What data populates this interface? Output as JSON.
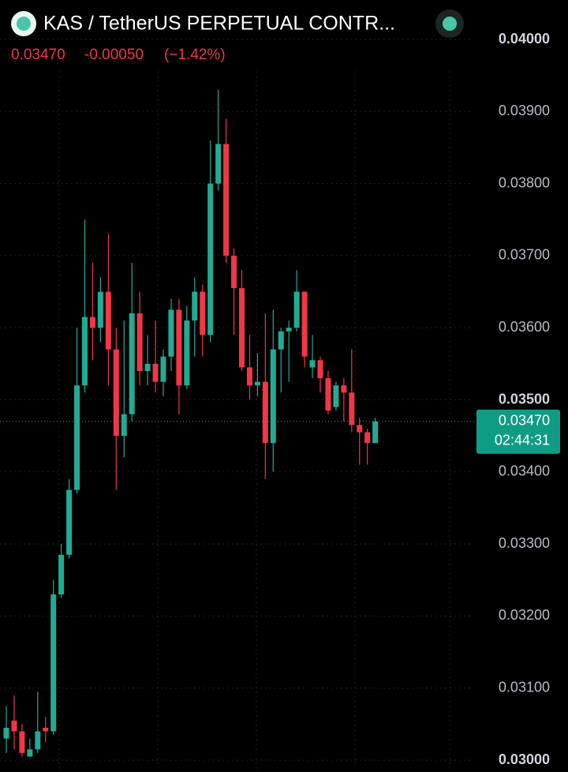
{
  "chart_data": {
    "type": "candlestick",
    "title": "KAS / TetherUS PERPETUAL CONTR...",
    "last": {
      "value": 0.0347,
      "label": "0.03470"
    },
    "change": {
      "value": -0.0005,
      "label": "-0.00050"
    },
    "change_pct": {
      "value": -1.42,
      "label": "(−1.42%)"
    },
    "price_tag": {
      "value": 0.0347,
      "label": "0.03470"
    },
    "countdown": "02:44:31",
    "up_color": "#22ab94",
    "down_color": "#f23645",
    "open": [
      0.0303,
      0.03055,
      0.0304,
      0.03005,
      0.03015,
      0.03045,
      0.0304,
      0.0323,
      0.03285,
      0.03375,
      0.0352,
      0.03615,
      0.036,
      0.0365,
      0.0357,
      0.0345,
      0.0348,
      0.0362,
      0.0354,
      0.0355,
      0.03525,
      0.0356,
      0.03625,
      0.0352,
      0.0361,
      0.0365,
      0.0359,
      0.038,
      0.03855,
      0.037,
      0.03655,
      0.03545,
      0.0352,
      0.03525,
      0.0344,
      0.0357,
      0.03595,
      0.036,
      0.0365,
      0.03545,
      0.03555,
      0.0353,
      0.0349,
      0.0352,
      0.0351,
      0.03465,
      0.03455,
      0.0344
    ],
    "high": [
      0.03075,
      0.0309,
      0.0305,
      0.0303,
      0.03095,
      0.0306,
      0.0325,
      0.033,
      0.0339,
      0.036,
      0.0375,
      0.0369,
      0.0367,
      0.0373,
      0.036,
      0.0361,
      0.0369,
      0.0365,
      0.0359,
      0.0361,
      0.0357,
      0.0364,
      0.0364,
      0.0363,
      0.0367,
      0.0366,
      0.0386,
      0.0393,
      0.0389,
      0.0371,
      0.0368,
      0.0359,
      0.03565,
      0.0362,
      0.03625,
      0.036,
      0.0361,
      0.0368,
      0.0365,
      0.0359,
      0.0356,
      0.0354,
      0.03525,
      0.0353,
      0.0357,
      0.03475,
      0.0346,
      0.03475
    ],
    "low": [
      0.0301,
      0.03015,
      0.03005,
      0.03005,
      0.0301,
      0.03025,
      0.03035,
      0.03225,
      0.0328,
      0.0337,
      0.0351,
      0.03555,
      0.0358,
      0.0352,
      0.03375,
      0.0342,
      0.0347,
      0.0352,
      0.0352,
      0.0351,
      0.03505,
      0.0354,
      0.0348,
      0.03515,
      0.0356,
      0.0356,
      0.0358,
      0.0379,
      0.0369,
      0.0359,
      0.0354,
      0.035,
      0.03505,
      0.0339,
      0.034,
      0.0351,
      0.03525,
      0.03595,
      0.03545,
      0.0353,
      0.0351,
      0.0348,
      0.03485,
      0.0347,
      0.03455,
      0.0341,
      0.0341,
      0.0344
    ],
    "close": [
      0.03045,
      0.0304,
      0.0301,
      0.03015,
      0.0304,
      0.0304,
      0.0323,
      0.03285,
      0.03375,
      0.0352,
      0.03615,
      0.036,
      0.0365,
      0.0357,
      0.0345,
      0.0348,
      0.0362,
      0.0354,
      0.0355,
      0.03525,
      0.0356,
      0.03625,
      0.0352,
      0.0361,
      0.0365,
      0.0359,
      0.038,
      0.03855,
      0.037,
      0.03655,
      0.03545,
      0.0352,
      0.03525,
      0.0344,
      0.0357,
      0.03595,
      0.036,
      0.0365,
      0.0356,
      0.03555,
      0.0353,
      0.03485,
      0.0352,
      0.0351,
      0.03465,
      0.03455,
      0.0344,
      0.0347
    ],
    "ylim": [
      0.03,
      0.04
    ],
    "yticks": [
      {
        "value": 0.03,
        "label": "0.03000"
      },
      {
        "value": 0.031,
        "label": "0.03100"
      },
      {
        "value": 0.032,
        "label": "0.03200"
      },
      {
        "value": 0.033,
        "label": "0.03300"
      },
      {
        "value": 0.034,
        "label": "0.03400"
      },
      {
        "value": 0.035,
        "label": "0.03500"
      },
      {
        "value": 0.036,
        "label": "0.03600"
      },
      {
        "value": 0.037,
        "label": "0.03700"
      },
      {
        "value": 0.038,
        "label": "0.03800"
      },
      {
        "value": 0.039,
        "label": "0.03900"
      },
      {
        "value": 0.04,
        "label": "0.04000"
      }
    ],
    "grid": true
  }
}
